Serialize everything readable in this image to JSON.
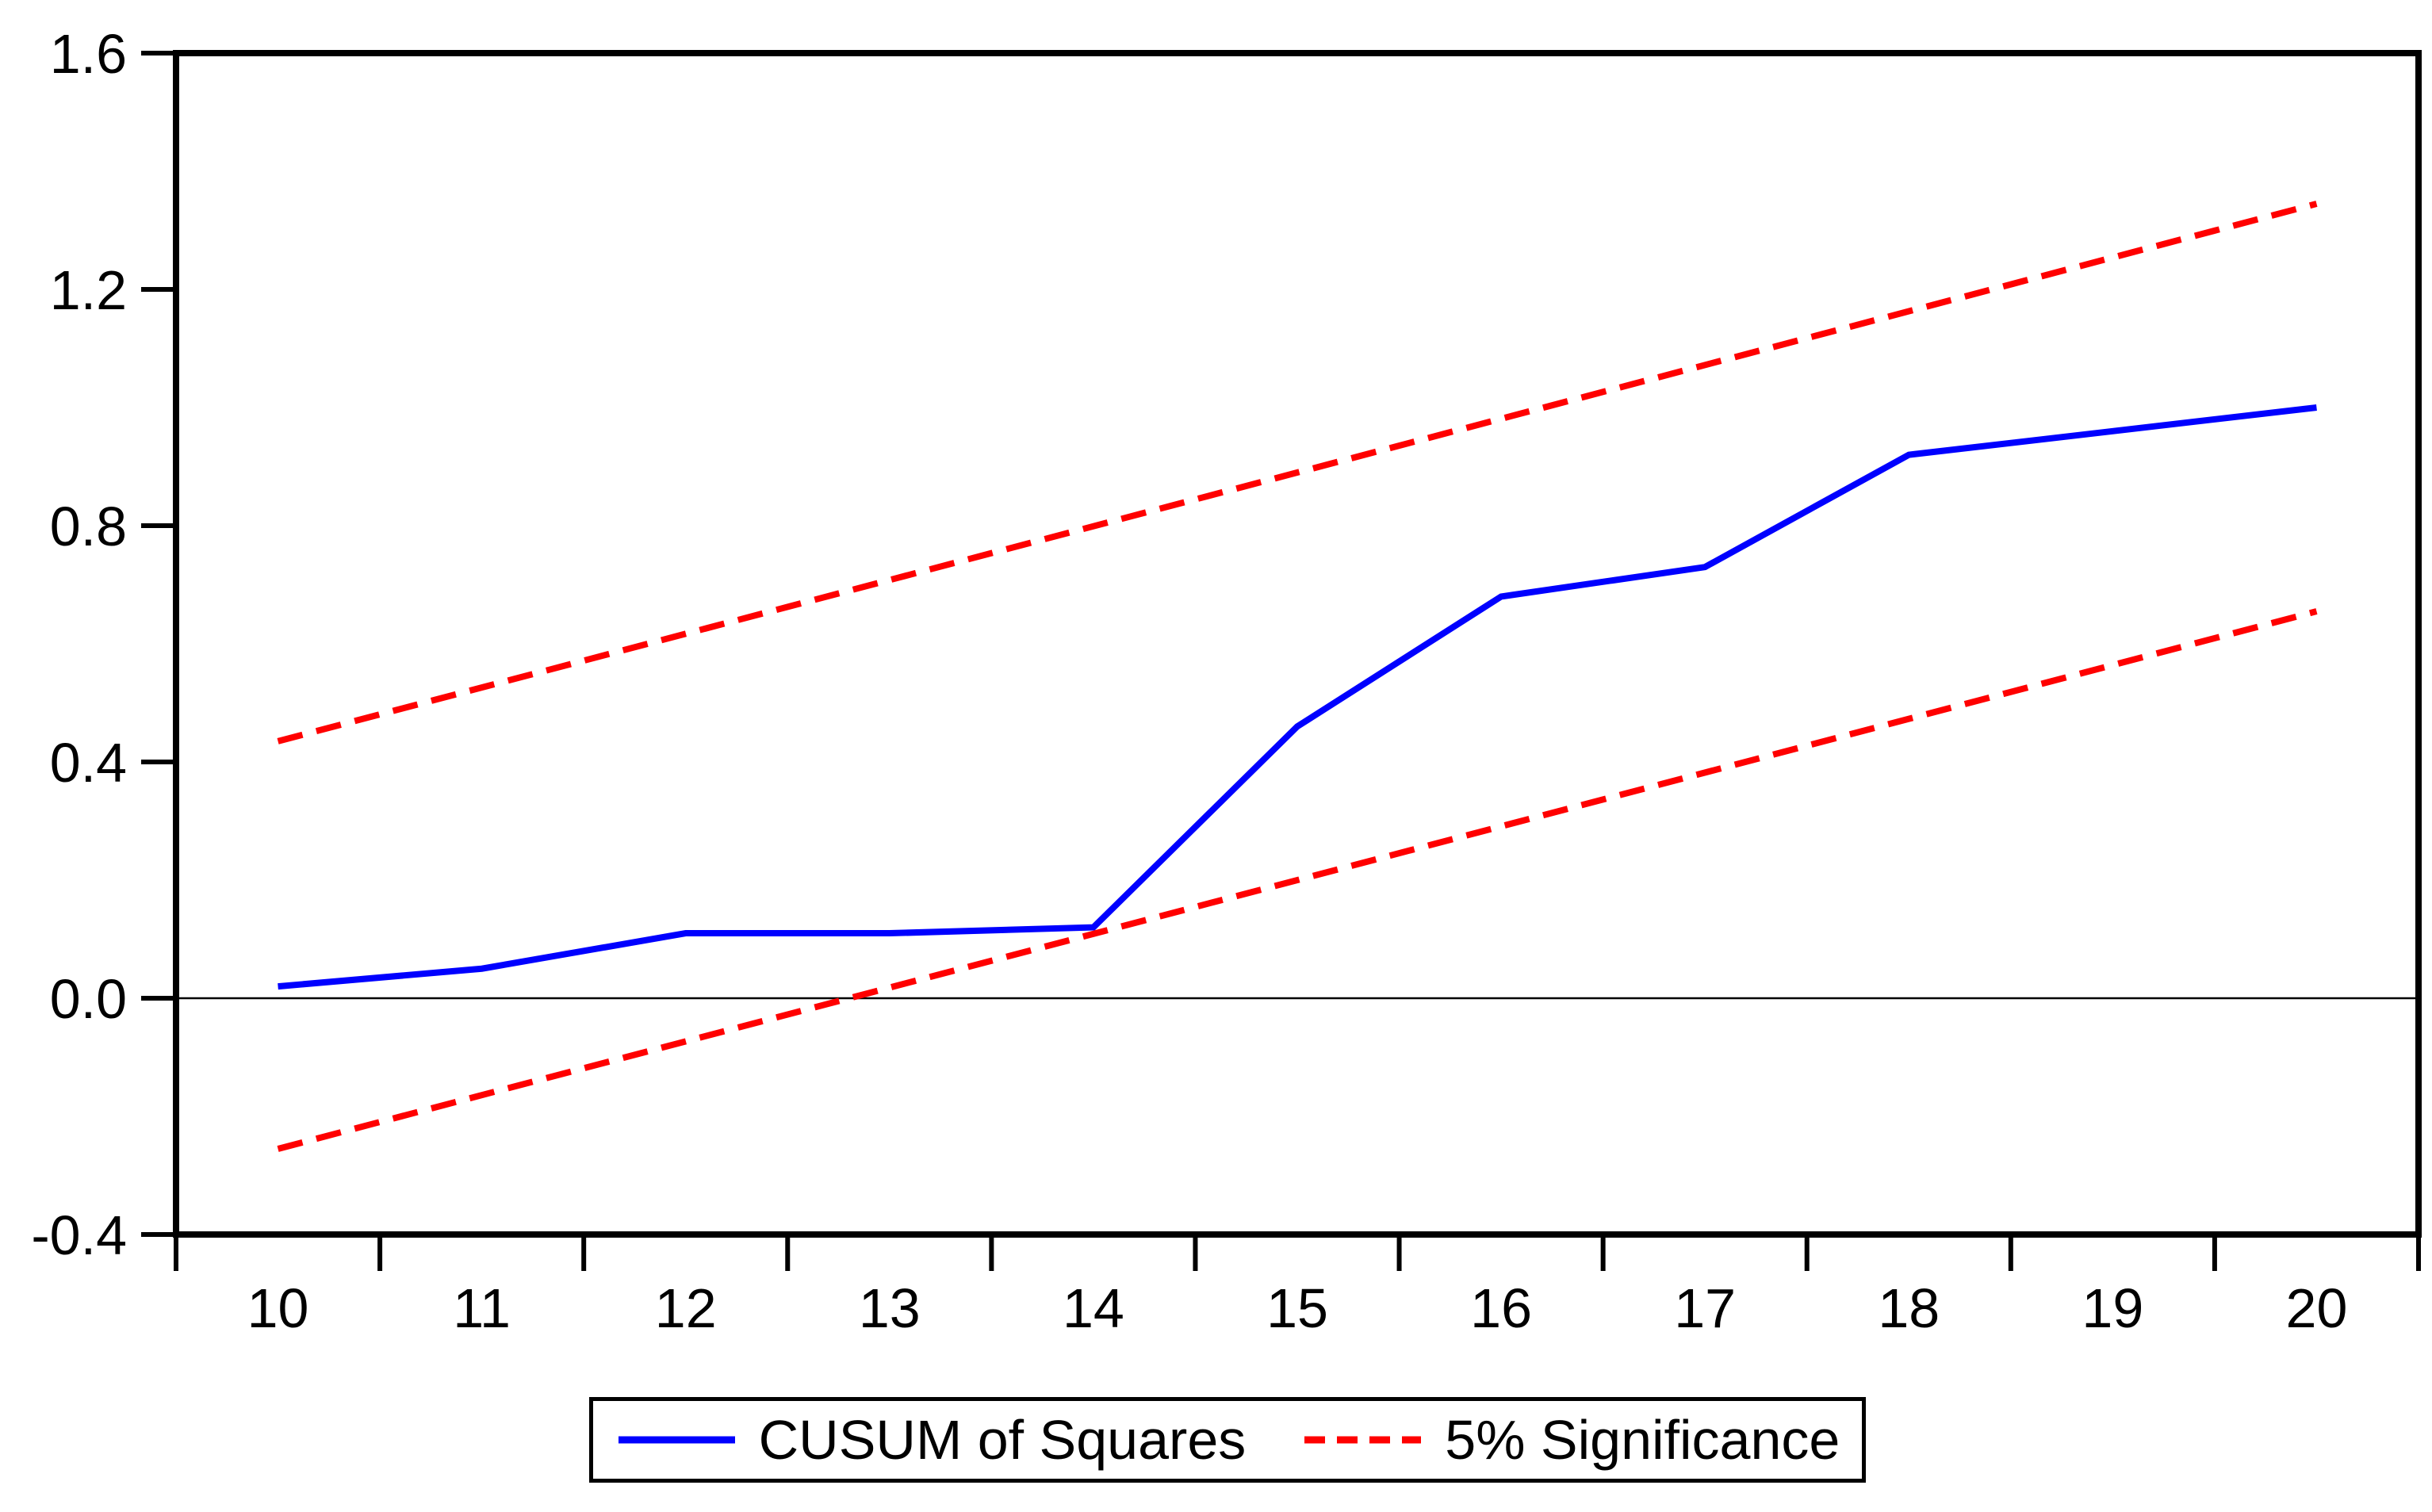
{
  "chart_data": {
    "type": "line",
    "title": "",
    "xlabel": "",
    "ylabel": "",
    "x": [
      10,
      11,
      12,
      13,
      14,
      15,
      16,
      17,
      18,
      19,
      20
    ],
    "series": [
      {
        "name": "CUSUM of Squares",
        "color": "#0000ff",
        "line_style": "solid",
        "values": [
          0.02,
          0.05,
          0.11,
          0.11,
          0.12,
          0.46,
          0.68,
          0.73,
          0.92,
          0.96,
          1.0
        ]
      },
      {
        "name": "5% Significance (upper band)",
        "color": "#ff0000",
        "line_style": "dashed",
        "x": [
          10,
          20
        ],
        "values": [
          0.435,
          1.345
        ]
      },
      {
        "name": "5% Significance (lower band)",
        "color": "#ff0000",
        "line_style": "dashed",
        "x": [
          10,
          20
        ],
        "values": [
          -0.255,
          0.655
        ]
      }
    ],
    "xlim": [
      9.5,
      20.5
    ],
    "ylim": [
      -0.4,
      1.6
    ],
    "y_ticks": [
      1.6,
      1.2,
      0.8,
      0.4,
      0.0,
      -0.4
    ],
    "y_tick_labels": [
      "1.6",
      "1.2",
      "0.8",
      "0.4",
      "0.0",
      "-0.4"
    ],
    "x_ticks": [
      10,
      11,
      12,
      13,
      14,
      15,
      16,
      17,
      18,
      19,
      20
    ],
    "x_tick_labels": [
      "10",
      "11",
      "12",
      "13",
      "14",
      "15",
      "16",
      "17",
      "18",
      "19",
      "20"
    ],
    "minor_x_ticks": [
      9.5,
      10.5,
      11.5,
      12.5,
      13.5,
      14.5,
      15.5,
      16.5,
      17.5,
      18.5,
      19.5,
      20.5
    ],
    "zero_line": true,
    "grid": false,
    "legend": {
      "position": "bottom-center",
      "entries": [
        {
          "label": "CUSUM of Squares",
          "color": "#0000ff",
          "line_style": "solid"
        },
        {
          "label": "5% Significance",
          "color": "#ff0000",
          "line_style": "dashed"
        }
      ]
    },
    "colors": {
      "statistic_line": "#0000ff",
      "significance_line": "#ff0000",
      "axis": "#000000",
      "background": "#ffffff"
    }
  }
}
